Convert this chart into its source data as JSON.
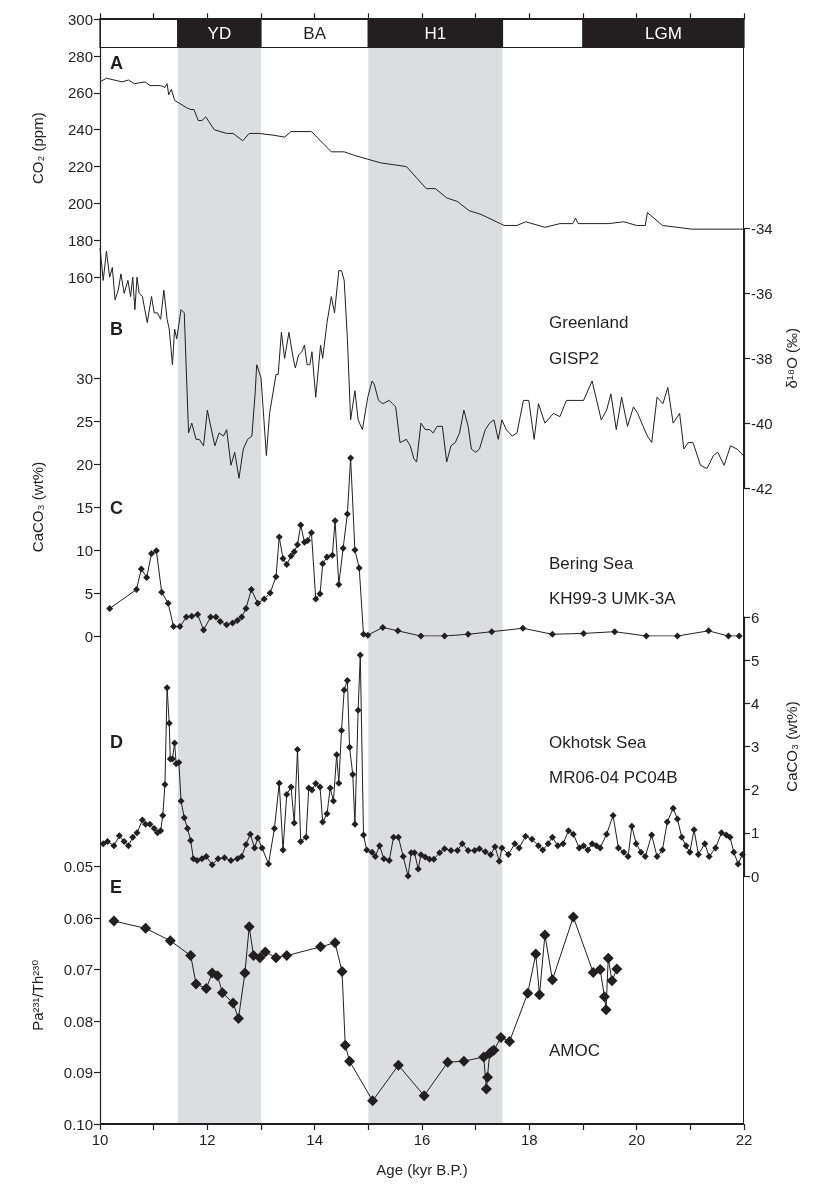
{
  "chart_data": [
    {
      "type": "line",
      "title": "A",
      "ylabel": "CO₂ (ppm)",
      "color": "#231f20",
      "marker": "none",
      "tick_labels": "y",
      "xlim": [
        10,
        22
      ],
      "xticks": [
        10,
        {
          "value": 11,
          "label": null
        },
        12,
        {
          "value": 13,
          "label": null
        },
        14,
        {
          "value": 15,
          "label": null
        },
        16,
        {
          "value": 17,
          "label": null
        },
        18,
        {
          "value": 19,
          "label": null
        },
        20,
        {
          "value": 21,
          "label": null
        },
        22
      ],
      "ylim": [
        160,
        300
      ],
      "yticks": [
        160,
        180,
        200,
        220,
        240,
        260,
        280,
        300
      ],
      "x": [
        10.0,
        10.12,
        10.41,
        10.53,
        10.64,
        10.84,
        10.93,
        11.13,
        11.21,
        11.25,
        11.28,
        11.33,
        11.39,
        11.61,
        11.69,
        11.75,
        11.83,
        11.9,
        11.97,
        12.13,
        12.36,
        12.48,
        12.66,
        12.78,
        12.96,
        13.24,
        13.44,
        13.56,
        13.94,
        14.31,
        14.55,
        14.75,
        14.99,
        15.23,
        15.47,
        15.71,
        16.08,
        16.25,
        16.46,
        16.66,
        16.88,
        17.1,
        17.53,
        17.77,
        17.93,
        18.29,
        18.57,
        18.81,
        18.86,
        18.91,
        19.48,
        19.76,
        20.0,
        20.16,
        20.2,
        20.48,
        21.03,
        21.27,
        21.59,
        21.99
      ],
      "values": [
        266,
        268,
        266,
        267,
        265,
        266,
        264,
        264,
        263,
        265,
        259,
        262,
        256,
        252,
        251,
        251,
        245,
        245,
        247,
        240,
        238,
        238,
        234,
        238,
        238,
        237,
        236,
        239,
        239,
        228,
        228,
        226,
        224,
        222,
        221,
        220,
        208,
        208,
        203,
        201,
        196,
        194,
        188,
        188,
        190,
        187,
        189,
        189,
        192,
        189,
        189,
        190,
        188,
        188,
        195,
        188,
        186,
        186,
        186,
        186
      ],
      "bands": [
        {
          "axis": "x",
          "from": 10,
          "to": 11.45,
          "label": null,
          "color": "#ffffff"
        },
        {
          "axis": "x",
          "from": 11.45,
          "to": 13,
          "label": "YD",
          "color": "#231f20"
        },
        {
          "axis": "x",
          "from": 13,
          "to": 15,
          "label": "BA",
          "color": "#ffffff"
        },
        {
          "axis": "x",
          "from": 15,
          "to": 17.5,
          "label": "H1",
          "color": "#231f20"
        },
        {
          "axis": "x",
          "from": 17.5,
          "to": 19,
          "label": null,
          "color": "#ffffff"
        },
        {
          "axis": "x",
          "from": 19,
          "to": 22,
          "label": "LGM",
          "color": "#231f20"
        },
        {
          "axis": "x",
          "from": 11.45,
          "to": 13,
          "color": "#dcdde0"
        },
        {
          "axis": "x",
          "from": 15,
          "to": 17.5,
          "color": "#dcdde0"
        }
      ]
    },
    {
      "type": "line",
      "title": "B",
      "y2label": "δ¹⁸O (‰)",
      "color": "#231f20",
      "marker": "none",
      "tick_labels": "y",
      "annotations": [
        "Greenland",
        "GISP2"
      ],
      "xlim": [
        10,
        22
      ],
      "y2lim": [
        -42,
        -34
      ],
      "y2ticks": [
        -42,
        -40,
        -38,
        -36,
        -34
      ],
      "series": [
        {
          "axis": "y2",
          "x": [
            10.0,
            10.06,
            10.12,
            10.18,
            10.23,
            10.28,
            10.34,
            10.39,
            10.45,
            10.52,
            10.57,
            10.61,
            10.65,
            10.69,
            10.73,
            10.79,
            10.88,
            10.96,
            11.01,
            11.07,
            11.13,
            11.19,
            11.25,
            11.29,
            11.35,
            11.39,
            11.43,
            11.51,
            11.57,
            11.65,
            11.71,
            11.79,
            11.85,
            11.93,
            12.0,
            12.14,
            12.22,
            12.3,
            12.36,
            12.44,
            12.51,
            12.59,
            12.67,
            12.75,
            12.83,
            12.89,
            12.92,
            13.0,
            13.1,
            13.16,
            13.28,
            13.32,
            13.38,
            13.44,
            13.52,
            13.6,
            13.64,
            13.7,
            13.76,
            13.81,
            13.86,
            13.91,
            13.95,
            14.02,
            14.11,
            14.15,
            14.23,
            14.31,
            14.37,
            14.45,
            14.5,
            14.55,
            14.61,
            14.67,
            14.75,
            14.81,
            14.89,
            14.99,
            15.07,
            15.11,
            15.19,
            15.27,
            15.39,
            15.45,
            15.51,
            15.59,
            15.71,
            15.78,
            15.85,
            15.9,
            15.98,
            16.06,
            16.14,
            16.21,
            16.28,
            16.38,
            16.46,
            16.54,
            16.62,
            16.7,
            16.78,
            16.86,
            16.92,
            17.0,
            17.07,
            17.18,
            17.26,
            17.34,
            17.42,
            17.49,
            17.57,
            17.68,
            17.77,
            17.89,
            17.99,
            18.09,
            18.17,
            18.29,
            18.45,
            18.57,
            18.69,
            18.81,
            18.89,
            19.01,
            19.17,
            19.34,
            19.44,
            19.52,
            19.62,
            19.72,
            19.83,
            19.94,
            20.02,
            20.12,
            20.2,
            20.28,
            20.38,
            20.49,
            20.58,
            20.68,
            20.8,
            20.88,
            20.96,
            21.05,
            21.19,
            21.31,
            21.43,
            21.51,
            21.63,
            21.75,
            21.87,
            21.99
          ],
          "values": [
            -34.6,
            -35.6,
            -34.7,
            -35.5,
            -35.2,
            -36.2,
            -35.9,
            -35.4,
            -36.0,
            -35.6,
            -36.1,
            -35.5,
            -36.5,
            -35.5,
            -36.0,
            -36.1,
            -36.9,
            -36.1,
            -36.6,
            -36.6,
            -36.8,
            -35.9,
            -36.8,
            -37.1,
            -38.2,
            -37.1,
            -37.4,
            -36.5,
            -36.6,
            -40.3,
            -40.0,
            -40.5,
            -40.5,
            -40.7,
            -39.6,
            -40.7,
            -40.3,
            -40.4,
            -40.2,
            -41.3,
            -40.9,
            -41.7,
            -40.8,
            -40.5,
            -40.4,
            -39.1,
            -38.2,
            -38.6,
            -41.0,
            -39.7,
            -38.5,
            -38.5,
            -37.2,
            -38.0,
            -37.2,
            -38.0,
            -38.3,
            -37.9,
            -37.8,
            -37.6,
            -38.2,
            -38.2,
            -37.8,
            -39.2,
            -37.6,
            -38.0,
            -36.9,
            -36.1,
            -36.6,
            -35.3,
            -35.3,
            -35.6,
            -37.4,
            -39.9,
            -39.0,
            -39.9,
            -40.2,
            -39.2,
            -38.7,
            -38.8,
            -39.3,
            -39.4,
            -39.3,
            -39.4,
            -39.5,
            -40.6,
            -40.5,
            -40.7,
            -41.1,
            -41.2,
            -40.0,
            -40.2,
            -40.2,
            -40.3,
            -40.1,
            -40.1,
            -41.2,
            -40.7,
            -40.6,
            -40.3,
            -39.6,
            -40.1,
            -40.8,
            -40.9,
            -40.8,
            -40.2,
            -40.0,
            -39.9,
            -40.5,
            -39.9,
            -40.2,
            -40.4,
            -40.3,
            -39.3,
            -39.3,
            -40.5,
            -39.4,
            -40.0,
            -39.7,
            -39.8,
            -39.3,
            -39.3,
            -39.3,
            -39.3,
            -38.7,
            -39.9,
            -39.6,
            -39.1,
            -40.2,
            -39.2,
            -40.1,
            -39.5,
            -39.7,
            -40.1,
            -40.4,
            -40.6,
            -39.2,
            -39.4,
            -38.9,
            -40.0,
            -39.7,
            -40.8,
            -40.6,
            -40.6,
            -41.3,
            -41.4,
            -41.0,
            -40.9,
            -41.3,
            -40.7,
            -40.8,
            -41.0
          ]
        }
      ]
    },
    {
      "type": "line",
      "title": "C",
      "ylabel": "CaCO₃ (wt%)",
      "color": "#231f20",
      "marker": "diamond",
      "tick_labels": "y",
      "annotations": [
        "Bering Sea",
        "KH99-3 UMK-3A"
      ],
      "xlim": [
        10,
        22
      ],
      "ylim": [
        0,
        30
      ],
      "yticks": [
        0,
        5,
        10,
        15,
        20,
        25,
        30
      ],
      "x": [
        10.18,
        10.68,
        10.77,
        10.87,
        10.96,
        11.05,
        11.15,
        11.27,
        11.37,
        11.49,
        11.61,
        11.71,
        11.82,
        11.93,
        12.06,
        12.16,
        12.24,
        12.36,
        12.47,
        12.56,
        12.64,
        12.72,
        12.82,
        12.94,
        13.06,
        13.17,
        13.28,
        13.34,
        13.41,
        13.48,
        13.56,
        13.62,
        13.68,
        13.74,
        13.81,
        13.87,
        13.94,
        14.02,
        14.1,
        14.15,
        14.23,
        14.33,
        14.38,
        14.45,
        14.53,
        14.61,
        14.67,
        14.75,
        14.83,
        14.91,
        14.99,
        15.27,
        15.55,
        15.98,
        16.42,
        16.86,
        17.3,
        17.88,
        18.43,
        19.01,
        19.59,
        20.18,
        20.76,
        21.34,
        21.71,
        21.91
      ],
      "values": [
        3.2,
        5.4,
        7.8,
        6.8,
        9.6,
        9.9,
        5.1,
        3.8,
        1.1,
        1.1,
        2.2,
        2.3,
        2.5,
        0.7,
        2.2,
        2.2,
        1.7,
        1.3,
        1.5,
        1.8,
        2.2,
        3.2,
        5.4,
        3.8,
        4.3,
        5.0,
        6.9,
        11.5,
        9.0,
        8.3,
        9.3,
        9.8,
        10.6,
        12.9,
        10.9,
        11.1,
        12.0,
        4.3,
        4.9,
        8.4,
        9.2,
        9.4,
        13.4,
        6.0,
        10.2,
        14.2,
        20.7,
        10.0,
        7.9,
        0.2,
        0.1,
        1.0,
        0.6,
        0.0,
        0.0,
        0.2,
        0.5,
        0.9,
        0.2,
        0.3,
        0.5,
        0.0,
        0.0,
        0.6,
        0.0,
        0.0
      ]
    },
    {
      "type": "line",
      "y2label": "CaCO₃ (wt%)",
      "title": "D",
      "color": "#231f20",
      "marker": "diamond",
      "tick_labels": "y",
      "annotations": [
        "Okhotsk Sea",
        "MR06-04 PC04B"
      ],
      "xlim": [
        10,
        22
      ],
      "y2lim": [
        0,
        6
      ],
      "y2ticks": [
        0,
        1,
        2,
        3,
        4,
        5,
        6
      ],
      "series": [
        {
          "axis": "y2",
          "x": [
            10.06,
            10.14,
            10.26,
            10.36,
            10.45,
            10.53,
            10.61,
            10.69,
            10.79,
            10.85,
            10.93,
            11.01,
            11.07,
            11.13,
            11.17,
            11.21,
            11.25,
            11.29,
            11.31,
            11.35,
            11.39,
            11.42,
            11.47,
            11.51,
            11.57,
            11.63,
            11.69,
            11.74,
            11.81,
            11.9,
            11.98,
            12.09,
            12.2,
            12.32,
            12.44,
            12.56,
            12.64,
            12.72,
            12.8,
            12.88,
            12.94,
            13.02,
            13.14,
            13.25,
            13.34,
            13.41,
            13.48,
            13.56,
            13.62,
            13.68,
            13.74,
            13.84,
            13.89,
            13.95,
            14.02,
            14.1,
            14.15,
            14.23,
            14.29,
            14.35,
            14.41,
            14.45,
            14.5,
            14.55,
            14.61,
            14.65,
            14.71,
            14.75,
            14.81,
            14.85,
            14.91,
            14.97,
            15.07,
            15.13,
            15.21,
            15.29,
            15.39,
            15.47,
            15.56,
            15.65,
            15.74,
            15.8,
            15.86,
            15.93,
            15.98,
            16.06,
            16.14,
            16.22,
            16.33,
            16.42,
            16.54,
            16.66,
            16.75,
            16.86,
            16.98,
            17.07,
            17.18,
            17.28,
            17.36,
            17.44,
            17.49,
            17.61,
            17.73,
            17.81,
            17.93,
            18.05,
            18.17,
            18.25,
            18.35,
            18.43,
            18.53,
            18.63,
            18.73,
            18.82,
            18.93,
            19.01,
            19.09,
            19.17,
            19.25,
            19.32,
            19.44,
            19.56,
            19.66,
            19.76,
            19.84,
            19.91,
            19.99,
            20.08,
            20.16,
            20.28,
            20.38,
            20.48,
            20.57,
            20.68,
            20.76,
            20.84,
            20.92,
            20.99,
            21.07,
            21.15,
            21.27,
            21.35,
            21.47,
            21.58,
            21.67,
            21.74,
            21.81,
            21.89,
            21.97
          ],
          "values": [
            0.75,
            0.8,
            0.7,
            0.93,
            0.8,
            0.7,
            0.9,
            1.0,
            1.3,
            1.2,
            1.2,
            1.1,
            1.0,
            1.05,
            1.4,
            2.12,
            4.36,
            3.54,
            2.71,
            2.71,
            3.08,
            2.6,
            2.63,
            1.74,
            1.35,
            1.1,
            0.82,
            0.4,
            0.36,
            0.4,
            0.45,
            0.26,
            0.4,
            0.42,
            0.36,
            0.4,
            0.45,
            0.73,
            0.97,
            0.65,
            0.88,
            0.65,
            0.28,
            1.1,
            2.15,
            0.6,
            1.89,
            2.06,
            1.23,
            2.93,
            0.8,
            0.9,
            2.04,
            1.99,
            2.14,
            2.06,
            1.25,
            1.44,
            2.04,
            1.74,
            2.81,
            2.15,
            3.37,
            4.31,
            4.53,
            2.98,
            2.35,
            1.2,
            3.84,
            5.12,
            0.95,
            0.6,
            0.55,
            0.45,
            0.7,
            0.4,
            0.36,
            0.9,
            0.9,
            0.45,
            0.0,
            0.54,
            0.54,
            0.16,
            0.49,
            0.44,
            0.39,
            0.39,
            0.54,
            0.63,
            0.59,
            0.59,
            0.75,
            0.59,
            0.59,
            0.63,
            0.56,
            0.49,
            0.68,
            0.34,
            0.65,
            0.5,
            0.75,
            0.65,
            0.92,
            0.85,
            0.7,
            0.6,
            0.75,
            0.9,
            0.7,
            0.75,
            1.05,
            0.97,
            0.65,
            0.7,
            0.6,
            0.75,
            0.7,
            0.65,
            0.97,
            1.4,
            0.65,
            0.55,
            0.45,
            1.15,
            0.75,
            0.55,
            0.45,
            0.95,
            0.45,
            0.6,
            1.25,
            1.57,
            1.32,
            0.9,
            0.7,
            0.55,
            1.07,
            0.5,
            0.75,
            0.45,
            0.65,
            1.0,
            0.95,
            0.9,
            0.55,
            0.28,
            0.5
          ]
        }
      ]
    },
    {
      "type": "line",
      "title": "E",
      "ylabel": "Pa²³¹/Th²³⁰",
      "xlabel": "Age (kyr B.P.)",
      "color": "#231f20",
      "marker": "diamond",
      "annotations": [
        "AMOC"
      ],
      "xlim": [
        10,
        22
      ],
      "xticks": [
        10,
        {
          "value": 11,
          "label": null
        },
        12,
        {
          "value": 13,
          "label": null
        },
        14,
        {
          "value": 15,
          "label": null
        },
        16,
        {
          "value": 17,
          "label": null
        },
        18,
        {
          "value": 19,
          "label": null
        },
        20,
        {
          "value": 21,
          "label": null
        },
        22
      ],
      "ylim": [
        0.1,
        0.05
      ],
      "yticks": [
        0.05,
        0.06,
        0.07,
        0.08,
        0.09,
        {
          "value": 0.1,
          "label": "0.10"
        }
      ],
      "x": [
        10.26,
        10.85,
        11.31,
        11.69,
        11.79,
        11.98,
        12.09,
        12.19,
        12.28,
        12.48,
        12.58,
        12.7,
        12.78,
        12.86,
        12.98,
        13.08,
        13.28,
        13.48,
        14.11,
        14.38,
        14.51,
        14.57,
        14.65,
        15.08,
        15.56,
        16.04,
        16.48,
        16.78,
        17.15,
        17.2,
        17.22,
        17.26,
        17.3,
        17.34,
        17.47,
        17.63,
        17.97,
        18.12,
        18.19,
        18.29,
        18.43,
        18.82,
        19.19,
        19.32,
        19.4,
        19.43,
        19.47,
        19.54,
        19.63
      ],
      "values": [
        0.0606,
        0.062,
        0.0644,
        0.0673,
        0.0728,
        0.0737,
        0.0707,
        0.0712,
        0.0745,
        0.0765,
        0.0795,
        0.0707,
        0.0617,
        0.0673,
        0.0677,
        0.0666,
        0.0677,
        0.0673,
        0.0656,
        0.0648,
        0.0704,
        0.0847,
        0.0878,
        0.0955,
        0.0886,
        0.0945,
        0.088,
        0.0878,
        0.087,
        0.0932,
        0.0909,
        0.0863,
        0.0859,
        0.0857,
        0.0832,
        0.084,
        0.0746,
        0.067,
        0.0749,
        0.0633,
        0.072,
        0.0598,
        0.0706,
        0.07,
        0.0753,
        0.0778,
        0.0678,
        0.0722,
        0.0699
      ]
    }
  ]
}
